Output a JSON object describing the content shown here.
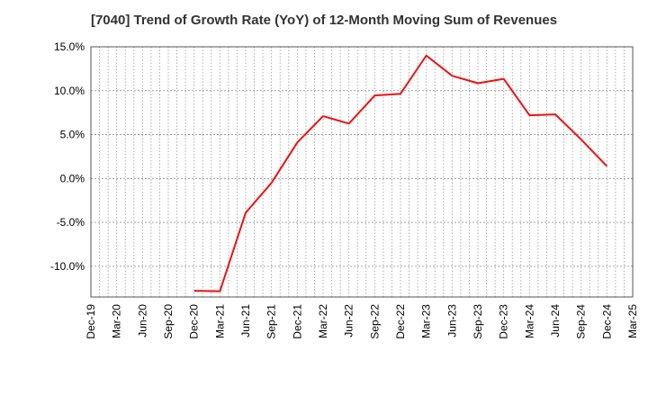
{
  "chart_data": {
    "type": "line",
    "title": "[7040]  Trend of Growth Rate (YoY) of 12-Month Moving Sum of Revenues",
    "xlabel": "",
    "ylabel": "",
    "x_ticks": [
      "Dec-19",
      "Mar-20",
      "Jun-20",
      "Sep-20",
      "Dec-20",
      "Mar-21",
      "Jun-21",
      "Sep-21",
      "Dec-21",
      "Mar-22",
      "Jun-22",
      "Sep-22",
      "Dec-22",
      "Mar-23",
      "Jun-23",
      "Sep-23",
      "Dec-23",
      "Mar-24",
      "Jun-24",
      "Sep-24",
      "Dec-24",
      "Mar-25"
    ],
    "y_ticks": [
      "15.0%",
      "10.0%",
      "5.0%",
      "0.0%",
      "-5.0%",
      "-10.0%"
    ],
    "y_tick_values": [
      15,
      10,
      5,
      0,
      -5,
      -10
    ],
    "ylim": [
      -13.5,
      15
    ],
    "x_range_months": [
      "Dec-19",
      "Mar-25"
    ],
    "grid": true,
    "line_color": "#ee1111",
    "series": [
      {
        "points": [
          {
            "x": "Dec-20",
            "y": -12.8
          },
          {
            "x": "Mar-21",
            "y": -12.85
          },
          {
            "x": "Jun-21",
            "y": -3.9
          },
          {
            "x": "Sep-21",
            "y": -0.5
          },
          {
            "x": "Dec-21",
            "y": 4.1
          },
          {
            "x": "Mar-22",
            "y": 7.1
          },
          {
            "x": "Jun-22",
            "y": 6.25
          },
          {
            "x": "Sep-22",
            "y": 9.45
          },
          {
            "x": "Dec-22",
            "y": 9.65
          },
          {
            "x": "Mar-23",
            "y": 14.0
          },
          {
            "x": "Jun-23",
            "y": 11.7
          },
          {
            "x": "Sep-23",
            "y": 10.85
          },
          {
            "x": "Dec-23",
            "y": 11.35
          },
          {
            "x": "Mar-24",
            "y": 7.2
          },
          {
            "x": "Jun-24",
            "y": 7.3
          },
          {
            "x": "Sep-24",
            "y": 4.45
          },
          {
            "x": "Dec-24",
            "y": 1.4
          }
        ]
      }
    ]
  }
}
